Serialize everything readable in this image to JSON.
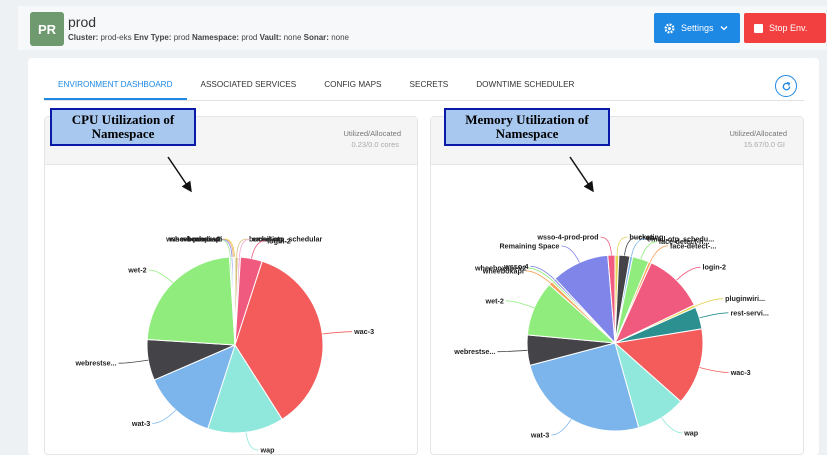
{
  "header": {
    "avatar": "PR",
    "env_name": "prod",
    "cluster_label": "Cluster:",
    "cluster_value": "prod-eks",
    "env_type_label": "Env Type:",
    "env_type_value": "prod",
    "namespace_label": "Namespace:",
    "namespace_value": "prod",
    "vault_label": "Vault:",
    "vault_value": "none",
    "sonar_label": "Sonar:",
    "sonar_value": "none",
    "settings_label": "Settings",
    "stop_label": "Stop Env."
  },
  "tabs": [
    {
      "label": "ENVIRONMENT DASHBOARD",
      "active": true
    },
    {
      "label": "ASSOCIATED SERVICES",
      "active": false
    },
    {
      "label": "CONFIG MAPS",
      "active": false
    },
    {
      "label": "SECRETS",
      "active": false
    },
    {
      "label": "DOWNTIME SCHEDULER",
      "active": false
    }
  ],
  "cpu_panel": {
    "util_label": "Utilized/Allocated",
    "util_value": "0.23/0.0 cores",
    "callout": "CPU Utilization of Namespace"
  },
  "memory_panel": {
    "util_label": "Utilized/Allocated",
    "util_value": "15.67/0.0 GI",
    "callout": "Memory Utilization of Namespace"
  },
  "chart_data": [
    {
      "type": "pie",
      "title": "",
      "slices": [
        {
          "label": "bucketing",
          "value": 0.6,
          "color": "#d4c27a"
        },
        {
          "label": "email-otp_schedular",
          "value": 0.4,
          "color": "#f2a6d4"
        },
        {
          "label": "login-2",
          "value": 4.0,
          "color": "#ef5a7e"
        },
        {
          "label": "wac-3",
          "value": 36.0,
          "color": "#f45b5b"
        },
        {
          "label": "wap",
          "value": 14.0,
          "color": "#90e8dc"
        },
        {
          "label": "wat-3",
          "value": 13.5,
          "color": "#7cb5ec"
        },
        {
          "label": "webrestse...",
          "value": 7.5,
          "color": "#434348"
        },
        {
          "label": "wet-2",
          "value": 23.0,
          "color": "#90ed7d"
        },
        {
          "label": "wsso-4-prod-...",
          "value": 0.3,
          "color": "#a8e6a0"
        },
        {
          "label": "wsso-4",
          "value": 0.3,
          "color": "#8085e9"
        },
        {
          "label": "wheeboxapi-v2",
          "value": 0.2,
          "color": "#f7a35c"
        },
        {
          "label": "wheeboxapi",
          "value": 0.2,
          "color": "#e4d354"
        }
      ]
    },
    {
      "type": "pie",
      "title": "",
      "slices": [
        {
          "label": "bucketing",
          "value": 0.7,
          "color": "#e4d354"
        },
        {
          "label": "cron",
          "value": 2.0,
          "color": "#434348"
        },
        {
          "label": "email-otp_schedu...",
          "value": 0.5,
          "color": "#7cb5ec"
        },
        {
          "label": "face-detect-h...",
          "value": 3.0,
          "color": "#90ed7d"
        },
        {
          "label": "face-detect-...",
          "value": 0.5,
          "color": "#f7a35c"
        },
        {
          "label": "login-2",
          "value": 11.0,
          "color": "#ef5a7e"
        },
        {
          "label": "pluginwiri...",
          "value": 0.5,
          "color": "#e4d354"
        },
        {
          "label": "rest-servi...",
          "value": 4.0,
          "color": "#2b908f"
        },
        {
          "label": "wac-3",
          "value": 14.0,
          "color": "#f45b5b"
        },
        {
          "label": "wap",
          "value": 9.0,
          "color": "#90e8dc"
        },
        {
          "label": "wat-3",
          "value": 25.0,
          "color": "#7cb5ec"
        },
        {
          "label": "webrestse...",
          "value": 5.5,
          "color": "#434348"
        },
        {
          "label": "wet-2",
          "value": 10.0,
          "color": "#90ed7d"
        },
        {
          "label": "wheeboxapi",
          "value": 0.7,
          "color": "#f7a35c"
        },
        {
          "label": "wheeboxapi-v2",
          "value": 0.4,
          "color": "#90ed7d"
        },
        {
          "label": "wsso-4",
          "value": 0.4,
          "color": "#8085e9"
        },
        {
          "label": "Remaining Space",
          "value": 10.5,
          "color": "#8085e9"
        },
        {
          "label": "wsso-4-prod-prod",
          "value": 1.3,
          "color": "#f15c80"
        }
      ]
    }
  ]
}
